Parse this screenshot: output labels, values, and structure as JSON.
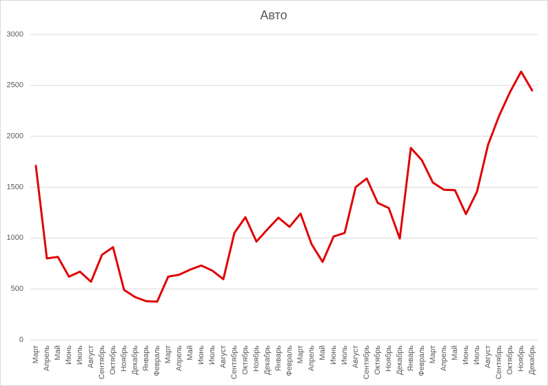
{
  "chart_data": {
    "type": "line",
    "title": "Авто",
    "categories": [
      "Март",
      "Апрель",
      "Май",
      "Июнь",
      "Июль",
      "Август",
      "Сентябрь",
      "Октябрь",
      "Ноябрь",
      "Декабрь",
      "Январь",
      "Февраль",
      "Март",
      "Апрель",
      "Май",
      "Июнь",
      "Июль",
      "Август",
      "Сентябрь",
      "Октябрь",
      "Ноябрь",
      "Декабрь",
      "Январь",
      "Февраль",
      "Март",
      "Апрель",
      "Май",
      "Июнь",
      "Июль",
      "Август",
      "Сентябрь",
      "Октябрь",
      "Ноябрь",
      "Декабрь",
      "Январь",
      "Февраль",
      "Март",
      "Апрель",
      "Май",
      "Июнь",
      "Июль",
      "Август",
      "Сентябрь",
      "Октябрь",
      "Ноябрь",
      "Декабрь"
    ],
    "values": [
      1710,
      800,
      815,
      620,
      670,
      570,
      835,
      910,
      490,
      420,
      380,
      375,
      620,
      640,
      690,
      730,
      680,
      595,
      1050,
      1205,
      965,
      1085,
      1200,
      1110,
      1240,
      940,
      765,
      1015,
      1050,
      1500,
      1585,
      1345,
      1295,
      995,
      1885,
      1765,
      1545,
      1475,
      1470,
      1235,
      1455,
      1915,
      2200,
      2435,
      2635,
      2450
    ],
    "color": "#e00000",
    "ylim": [
      0,
      3000
    ],
    "yticks": [
      0,
      500,
      1000,
      1500,
      2000,
      2500,
      3000
    ],
    "grid": true
  }
}
